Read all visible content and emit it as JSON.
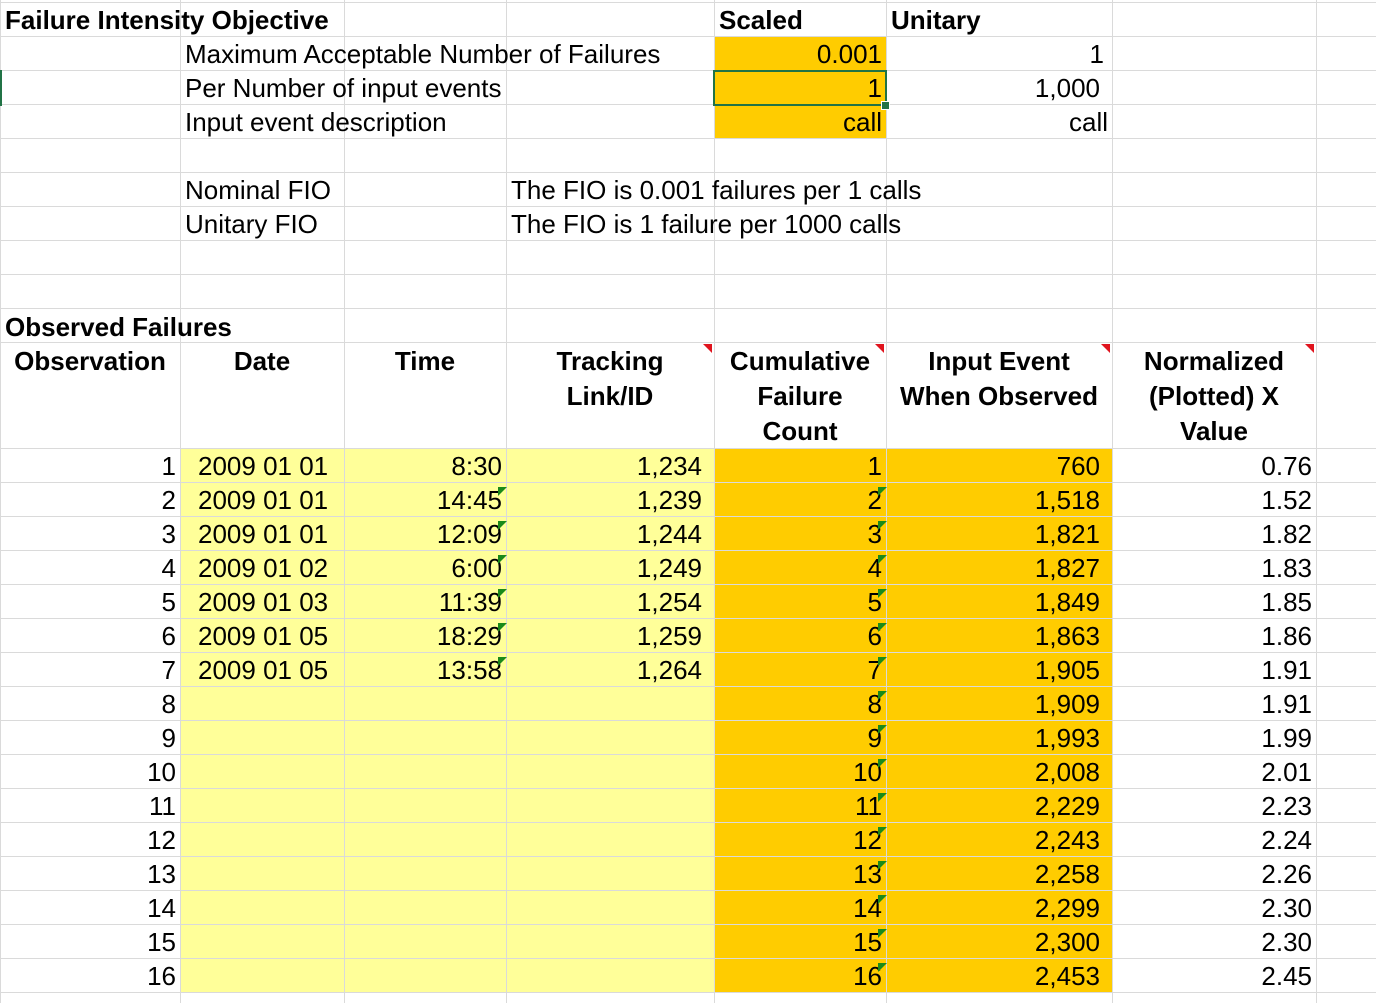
{
  "fio": {
    "title": "Failure Intensity Objective",
    "col_scaled": "Scaled",
    "col_unitary": "Unitary",
    "rows": [
      {
        "label": "Maximum Acceptable Number of Failures",
        "scaled": "0.001",
        "unitary": "1"
      },
      {
        "label": "Per Number of input events",
        "scaled": "1",
        "unitary": "1,000"
      },
      {
        "label": "Input event description",
        "scaled": "call",
        "unitary": "call"
      }
    ],
    "nominal_label": "Nominal FIO",
    "nominal_text": "The FIO is 0.001 failures per 1 calls",
    "unitary_label": "Unitary FIO",
    "unitary_text": "The FIO is 1 failure per 1000 calls"
  },
  "observed": {
    "title": "Observed Failures",
    "headers": {
      "observation": [
        "Observation"
      ],
      "date": [
        "Date"
      ],
      "time": [
        "Time"
      ],
      "tracking": [
        "Tracking",
        "Link/ID"
      ],
      "cumulative": [
        "Cumulative",
        "Failure",
        "Count"
      ],
      "input_event": [
        "Input Event",
        "When Observed"
      ],
      "normalized": [
        "Normalized",
        "(Plotted) X",
        "Value"
      ]
    },
    "rows": [
      {
        "obs": "1",
        "date": "2009 01 01",
        "time": "8:30",
        "tracking": "1,234",
        "count": "1",
        "event": "760",
        "x": "0.76"
      },
      {
        "obs": "2",
        "date": "2009 01 01",
        "time": "14:45",
        "tracking": "1,239",
        "count": "2",
        "event": "1,518",
        "x": "1.52"
      },
      {
        "obs": "3",
        "date": "2009 01 01",
        "time": "12:09",
        "tracking": "1,244",
        "count": "3",
        "event": "1,821",
        "x": "1.82"
      },
      {
        "obs": "4",
        "date": "2009 01 02",
        "time": "6:00",
        "tracking": "1,249",
        "count": "4",
        "event": "1,827",
        "x": "1.83"
      },
      {
        "obs": "5",
        "date": "2009 01 03",
        "time": "11:39",
        "tracking": "1,254",
        "count": "5",
        "event": "1,849",
        "x": "1.85"
      },
      {
        "obs": "6",
        "date": "2009 01 05",
        "time": "18:29",
        "tracking": "1,259",
        "count": "6",
        "event": "1,863",
        "x": "1.86"
      },
      {
        "obs": "7",
        "date": "2009 01 05",
        "time": "13:58",
        "tracking": "1,264",
        "count": "7",
        "event": "1,905",
        "x": "1.91"
      },
      {
        "obs": "8",
        "date": "",
        "time": "",
        "tracking": "",
        "count": "8",
        "event": "1,909",
        "x": "1.91"
      },
      {
        "obs": "9",
        "date": "",
        "time": "",
        "tracking": "",
        "count": "9",
        "event": "1,993",
        "x": "1.99"
      },
      {
        "obs": "10",
        "date": "",
        "time": "",
        "tracking": "",
        "count": "10",
        "event": "2,008",
        "x": "2.01"
      },
      {
        "obs": "11",
        "date": "",
        "time": "",
        "tracking": "",
        "count": "11",
        "event": "2,229",
        "x": "2.23"
      },
      {
        "obs": "12",
        "date": "",
        "time": "",
        "tracking": "",
        "count": "12",
        "event": "2,243",
        "x": "2.24"
      },
      {
        "obs": "13",
        "date": "",
        "time": "",
        "tracking": "",
        "count": "13",
        "event": "2,258",
        "x": "2.26"
      },
      {
        "obs": "14",
        "date": "",
        "time": "",
        "tracking": "",
        "count": "14",
        "event": "2,299",
        "x": "2.30"
      },
      {
        "obs": "15",
        "date": "",
        "time": "",
        "tracking": "",
        "count": "15",
        "event": "2,300",
        "x": "2.30"
      },
      {
        "obs": "16",
        "date": "",
        "time": "",
        "tracking": "",
        "count": "16",
        "event": "2,453",
        "x": "2.45"
      }
    ]
  },
  "colors": {
    "orange": "#ffcc00",
    "light_yellow": "#ffff99",
    "grid": "#dadada",
    "selection": "#217346",
    "comment_red": "#e0141e",
    "error_green": "#1a8a1a"
  }
}
